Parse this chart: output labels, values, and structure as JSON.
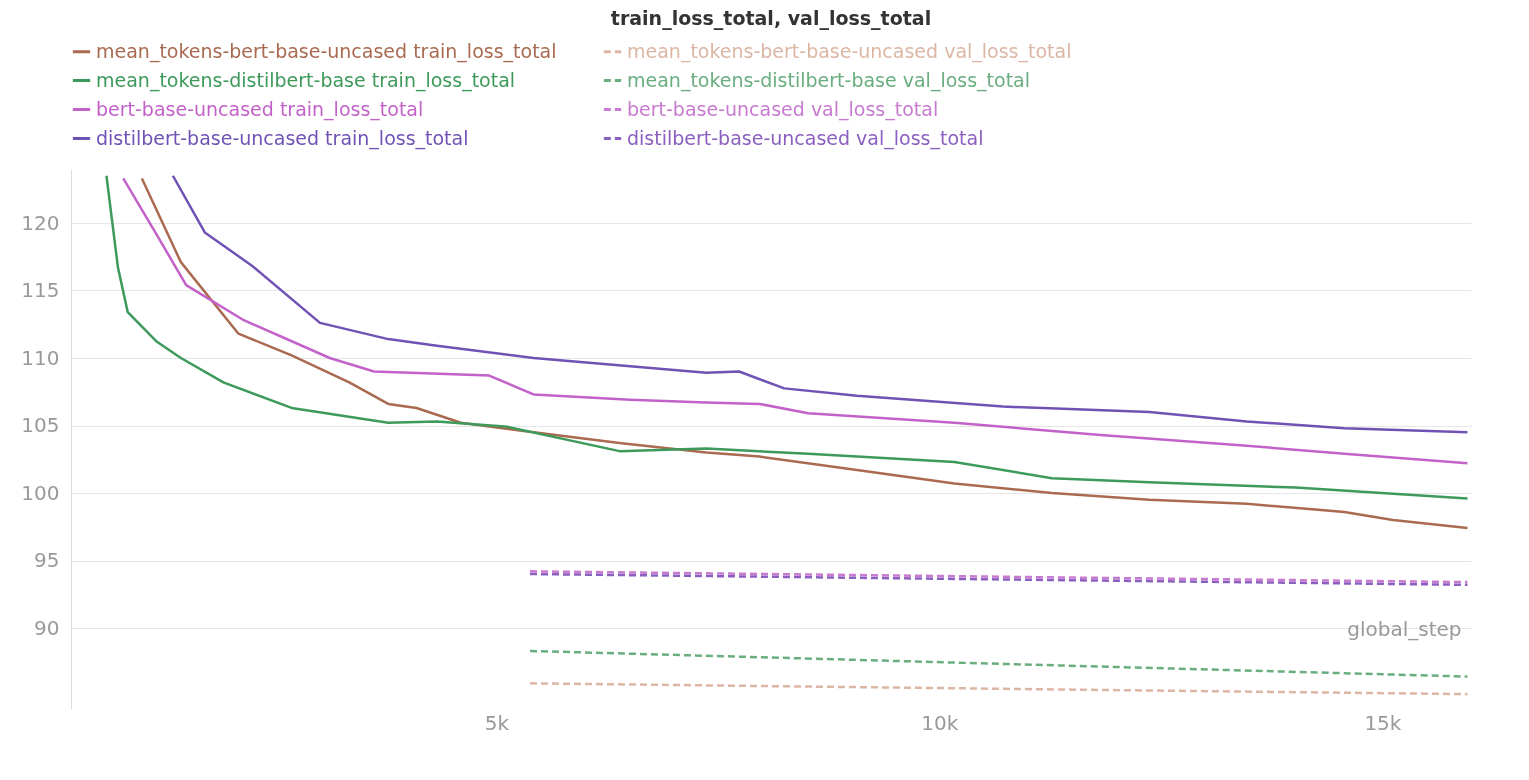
{
  "chart_data": {
    "type": "line",
    "title": "train_loss_total, val_loss_total",
    "xlabel": "global_step",
    "xlim": [
      200,
      16000
    ],
    "xticks": [
      {
        "value": 5000,
        "label": "5k"
      },
      {
        "value": 10000,
        "label": "10k"
      },
      {
        "value": 15000,
        "label": "15k"
      }
    ],
    "ylim": [
      84,
      124
    ],
    "yticks": [
      90,
      95,
      100,
      105,
      110,
      115,
      120
    ],
    "grid": "y",
    "legend": "top",
    "series": [
      {
        "name": "mean_tokens-bert-base-uncased train_loss_total",
        "color": "#a96a50",
        "line_style": "solid",
        "x": [
          1000,
          1440,
          2090,
          2690,
          3340,
          3780,
          4100,
          4600,
          5420,
          6390,
          7370,
          7970,
          9070,
          10170,
          11270,
          12370,
          13470,
          14570,
          15120,
          15960
        ],
        "values": [
          123.3,
          117.1,
          111.8,
          110.2,
          108.2,
          106.6,
          106.3,
          105.2,
          104.5,
          103.7,
          103.0,
          102.7,
          101.7,
          100.7,
          100.0,
          99.5,
          99.2,
          98.6,
          98.0,
          97.4
        ]
      },
      {
        "name": "mean_tokens-bert-base-uncased val_loss_total",
        "color": "#dcb6a4",
        "line_style": "dashed",
        "x": [
          5380,
          15960
        ],
        "values": [
          85.9,
          85.1
        ]
      },
      {
        "name": "mean_tokens-distilbert-base train_loss_total",
        "color": "#3d9a5b",
        "line_style": "solid",
        "x": [
          600,
          730,
          840,
          1170,
          1440,
          1920,
          2690,
          3780,
          4330,
          5130,
          6390,
          7370,
          8520,
          10170,
          11270,
          12370,
          14020,
          15960
        ],
        "values": [
          123.5,
          116.7,
          113.4,
          111.2,
          110.0,
          108.2,
          106.3,
          105.2,
          105.3,
          104.9,
          103.1,
          103.3,
          102.9,
          102.3,
          101.1,
          100.8,
          100.4,
          99.6
        ]
      },
      {
        "name": "mean_tokens-distilbert-base val_loss_total",
        "color": "#6aae80",
        "line_style": "dashed",
        "x": [
          5380,
          15960
        ],
        "values": [
          88.3,
          86.4
        ]
      },
      {
        "name": "bert-base-uncased train_loss_total",
        "color": "#c262c9",
        "line_style": "solid",
        "x": [
          790,
          1170,
          1500,
          2150,
          3120,
          3620,
          4920,
          5420,
          6510,
          7370,
          7970,
          8520,
          10170,
          11820,
          13470,
          14570,
          15960
        ],
        "values": [
          123.3,
          119.1,
          115.4,
          112.8,
          110.0,
          109.0,
          108.7,
          107.3,
          106.9,
          106.7,
          106.6,
          105.9,
          105.2,
          104.3,
          103.5,
          102.9,
          102.2
        ]
      },
      {
        "name": "bert-base-uncased val_loss_total",
        "color": "#c87ad0",
        "line_style": "dashed",
        "x": [
          5380,
          15960
        ],
        "values": [
          94.2,
          93.4
        ]
      },
      {
        "name": "distilbert-base-uncased train_loss_total",
        "color": "#7052b5",
        "line_style": "solid",
        "x": [
          1350,
          1710,
          2250,
          3010,
          3780,
          4330,
          5420,
          7370,
          7740,
          8250,
          9070,
          10720,
          12370,
          13470,
          14570,
          15960
        ],
        "values": [
          123.5,
          119.3,
          116.8,
          112.6,
          111.4,
          110.9,
          110.0,
          108.9,
          109.0,
          107.75,
          107.2,
          106.4,
          106.0,
          105.3,
          104.8,
          104.5
        ]
      },
      {
        "name": "distilbert-base-uncased val_loss_total",
        "color": "#8a5fbf",
        "line_style": "dashed",
        "x": [
          5380,
          15960
        ],
        "values": [
          94.0,
          93.2
        ]
      }
    ]
  }
}
